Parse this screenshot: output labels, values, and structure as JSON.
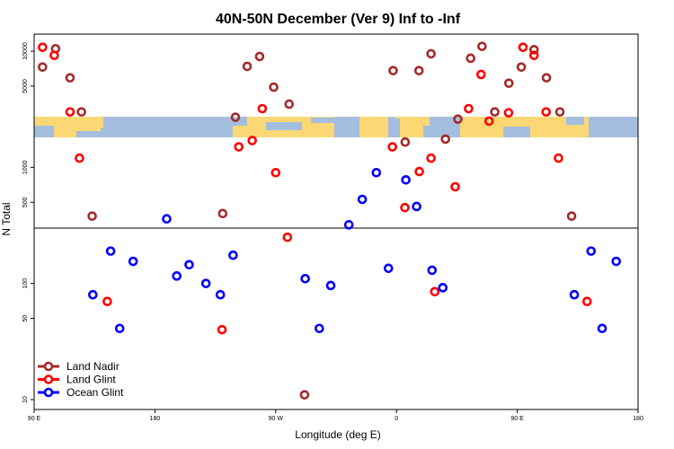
{
  "chart_data": {
    "type": "scatter",
    "title": "40N-50N December (Ver 9)   Inf to -Inf",
    "xlabel": "Longitude (deg E)",
    "ylabel": "N Total",
    "xlim": [
      90,
      270
    ],
    "x_ticks": [
      {
        "value": 90,
        "label": "90 E"
      },
      {
        "value": 126,
        "label": "180"
      },
      {
        "value": 162,
        "label": "90 W"
      },
      {
        "value": 198,
        "label": "0"
      },
      {
        "value": 234,
        "label": "90 E"
      },
      {
        "value": 270,
        "label": "180"
      }
    ],
    "y_ticks": [
      {
        "value": 10,
        "label": "10"
      },
      {
        "value": 50,
        "label": "50"
      },
      {
        "value": 100,
        "label": "100"
      },
      {
        "value": 500,
        "label": "500"
      },
      {
        "value": 1000,
        "label": "1000"
      },
      {
        "value": 5000,
        "label": "5000"
      },
      {
        "value": 10000,
        "label": "10000"
      }
    ],
    "map_band": {
      "land_color": "#fcd874",
      "ocean_color": "#a4bedf"
    },
    "reference_line": {
      "y": 300
    },
    "series": [
      {
        "name": "Land Nadir",
        "color": "#a52a2a",
        "points": [
          {
            "x": 92.5,
            "y": 7300
          },
          {
            "x": 96.4,
            "y": 10500
          },
          {
            "x": 100.7,
            "y": 5900
          },
          {
            "x": 104.1,
            "y": 3000
          },
          {
            "x": 107.3,
            "y": 380
          },
          {
            "x": 146.2,
            "y": 400
          },
          {
            "x": 150.0,
            "y": 2700
          },
          {
            "x": 153.5,
            "y": 7400
          },
          {
            "x": 157.2,
            "y": 9000
          },
          {
            "x": 161.4,
            "y": 4900
          },
          {
            "x": 166.0,
            "y": 3500
          },
          {
            "x": 170.6,
            "y": 11
          },
          {
            "x": 197.0,
            "y": 6800
          },
          {
            "x": 200.6,
            "y": 1650
          },
          {
            "x": 204.7,
            "y": 6800
          },
          {
            "x": 208.3,
            "y": 9500
          },
          {
            "x": 212.6,
            "y": 1750
          },
          {
            "x": 216.3,
            "y": 2600
          },
          {
            "x": 220.1,
            "y": 8700
          },
          {
            "x": 223.5,
            "y": 11000
          },
          {
            "x": 227.3,
            "y": 3000
          },
          {
            "x": 231.5,
            "y": 5300
          },
          {
            "x": 235.2,
            "y": 7300
          },
          {
            "x": 239.0,
            "y": 10300
          },
          {
            "x": 242.7,
            "y": 5900
          },
          {
            "x": 246.7,
            "y": 3000
          },
          {
            "x": 250.2,
            "y": 380
          }
        ]
      },
      {
        "name": "Land Glint",
        "color": "#ff0000",
        "points": [
          {
            "x": 92.5,
            "y": 10800
          },
          {
            "x": 96.0,
            "y": 9200
          },
          {
            "x": 100.7,
            "y": 3000
          },
          {
            "x": 103.5,
            "y": 1200
          },
          {
            "x": 111.8,
            "y": 70
          },
          {
            "x": 146.0,
            "y": 40
          },
          {
            "x": 151.0,
            "y": 1500
          },
          {
            "x": 155.0,
            "y": 1700
          },
          {
            "x": 158.0,
            "y": 3200
          },
          {
            "x": 162.0,
            "y": 900
          },
          {
            "x": 165.5,
            "y": 250
          },
          {
            "x": 196.8,
            "y": 1500
          },
          {
            "x": 200.5,
            "y": 450
          },
          {
            "x": 204.8,
            "y": 920
          },
          {
            "x": 208.3,
            "y": 1200
          },
          {
            "x": 209.4,
            "y": 85
          },
          {
            "x": 215.5,
            "y": 680
          },
          {
            "x": 219.5,
            "y": 3200
          },
          {
            "x": 223.2,
            "y": 6300
          },
          {
            "x": 225.6,
            "y": 2500
          },
          {
            "x": 231.4,
            "y": 2950
          },
          {
            "x": 235.7,
            "y": 10800
          },
          {
            "x": 239.0,
            "y": 9200
          },
          {
            "x": 242.6,
            "y": 3000
          },
          {
            "x": 246.3,
            "y": 1200
          },
          {
            "x": 254.8,
            "y": 70
          }
        ]
      },
      {
        "name": "Ocean Glint",
        "color": "#0000ff",
        "points": [
          {
            "x": 107.5,
            "y": 80
          },
          {
            "x": 112.8,
            "y": 190
          },
          {
            "x": 115.5,
            "y": 41
          },
          {
            "x": 119.5,
            "y": 155
          },
          {
            "x": 129.5,
            "y": 360
          },
          {
            "x": 132.5,
            "y": 116
          },
          {
            "x": 136.2,
            "y": 145
          },
          {
            "x": 141.2,
            "y": 100
          },
          {
            "x": 145.5,
            "y": 80
          },
          {
            "x": 149.3,
            "y": 175
          },
          {
            "x": 170.8,
            "y": 110
          },
          {
            "x": 175.0,
            "y": 41
          },
          {
            "x": 178.4,
            "y": 96
          },
          {
            "x": 183.8,
            "y": 320
          },
          {
            "x": 187.8,
            "y": 530
          },
          {
            "x": 192.0,
            "y": 900
          },
          {
            "x": 195.6,
            "y": 135
          },
          {
            "x": 200.8,
            "y": 780
          },
          {
            "x": 204.0,
            "y": 460
          },
          {
            "x": 208.6,
            "y": 130
          },
          {
            "x": 211.8,
            "y": 92
          },
          {
            "x": 251.0,
            "y": 80
          },
          {
            "x": 256.0,
            "y": 190
          },
          {
            "x": 259.3,
            "y": 41
          },
          {
            "x": 263.5,
            "y": 155
          }
        ]
      }
    ],
    "legend": {
      "position": "bottom-left"
    }
  }
}
